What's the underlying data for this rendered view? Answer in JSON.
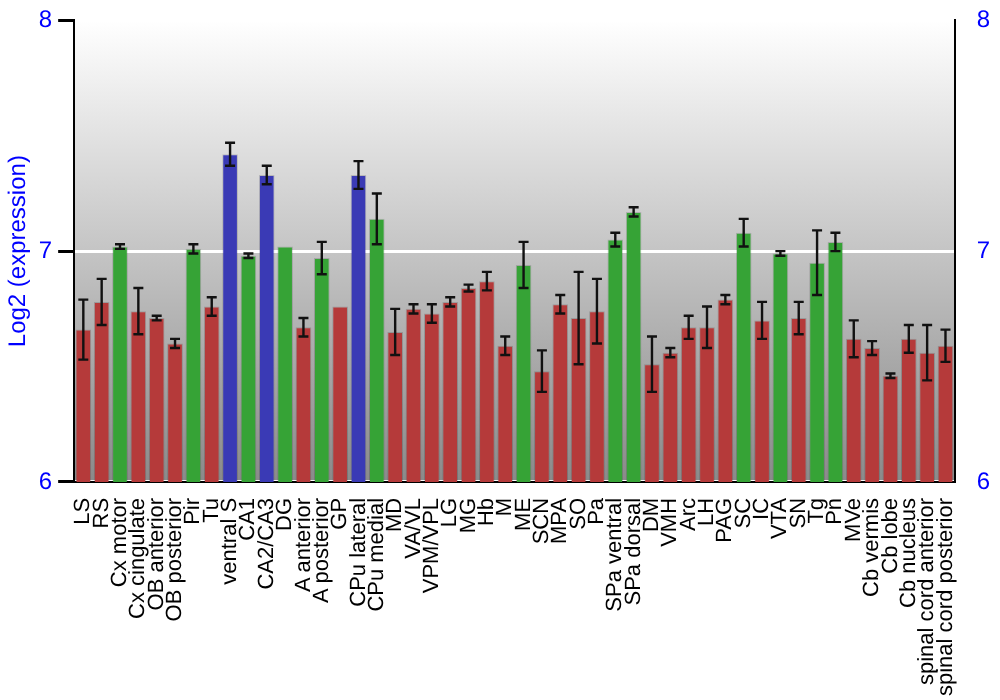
{
  "chart_data": {
    "type": "bar",
    "ylabel": "Log2 (expression)",
    "categories": [
      "LS",
      "RS",
      "Cx motor",
      "Cx cingulate",
      "OB anterior",
      "OB posterior",
      "Pir",
      "Tu",
      "ventral S",
      "CA1",
      "CA2/CA3",
      "DG",
      "A anterior",
      "A posterior",
      "GP",
      "CPu lateral",
      "CPu medial",
      "MD",
      "VA/VL",
      "VPM/VPL",
      "LG",
      "MG",
      "Hb",
      "M",
      "ME",
      "SCN",
      "MPA",
      "SO",
      "Pa",
      "SPa ventral",
      "SPa dorsal",
      "DM",
      "VMH",
      "Arc",
      "LH",
      "PAG",
      "SC",
      "IC",
      "VTA",
      "SN",
      "Tg",
      "Pn",
      "MVe",
      "Cb vermis",
      "Cb lobe",
      "Cb nucleus",
      "spinal cord anterior",
      "spinal cord posterior"
    ],
    "values": [
      6.66,
      6.78,
      7.02,
      6.74,
      6.71,
      6.6,
      7.01,
      6.76,
      7.42,
      6.98,
      7.33,
      7.02,
      6.67,
      6.97,
      6.76,
      7.33,
      7.14,
      6.65,
      6.75,
      6.73,
      6.78,
      6.84,
      6.87,
      6.59,
      6.94,
      6.48,
      6.77,
      6.71,
      6.74,
      7.05,
      7.17,
      6.51,
      6.56,
      6.67,
      6.67,
      6.79,
      7.08,
      6.7,
      6.99,
      6.71,
      6.95,
      7.04,
      6.62,
      6.58,
      6.46,
      6.62,
      6.56,
      6.59
    ],
    "errors": [
      0.13,
      0.1,
      0.01,
      0.1,
      0.01,
      0.02,
      0.02,
      0.04,
      0.05,
      0.01,
      0.04,
      null,
      0.04,
      0.07,
      null,
      0.06,
      0.11,
      0.1,
      0.02,
      0.04,
      0.02,
      0.015,
      0.04,
      0.04,
      0.1,
      0.09,
      0.04,
      0.2,
      0.14,
      0.03,
      0.02,
      0.12,
      0.02,
      0.05,
      0.09,
      0.02,
      0.06,
      0.08,
      0.01,
      0.07,
      0.14,
      0.04,
      0.08,
      0.03,
      0.01,
      0.06,
      0.12,
      0.07
    ],
    "colors": [
      "#b53a3a",
      "#b53a3a",
      "#36a336",
      "#b53a3a",
      "#b53a3a",
      "#b53a3a",
      "#36a336",
      "#b53a3a",
      "#3a3ab5",
      "#36a336",
      "#3a3ab5",
      "#36a336",
      "#b53a3a",
      "#36a336",
      "#b53a3a",
      "#3a3ab5",
      "#36a336",
      "#b53a3a",
      "#b53a3a",
      "#b53a3a",
      "#b53a3a",
      "#b53a3a",
      "#b53a3a",
      "#b53a3a",
      "#36a336",
      "#b53a3a",
      "#b53a3a",
      "#b53a3a",
      "#b53a3a",
      "#36a336",
      "#36a336",
      "#b53a3a",
      "#b53a3a",
      "#b53a3a",
      "#b53a3a",
      "#b53a3a",
      "#36a336",
      "#b53a3a",
      "#36a336",
      "#b53a3a",
      "#36a336",
      "#36a336",
      "#b53a3a",
      "#b53a3a",
      "#b53a3a",
      "#b53a3a",
      "#b53a3a",
      "#b53a3a"
    ],
    "ylim": [
      6,
      8
    ],
    "yticks": [
      6,
      7,
      8
    ],
    "y2lim": [
      6,
      8
    ],
    "y2ticks": [
      6,
      7,
      8
    ],
    "grid": "y"
  }
}
